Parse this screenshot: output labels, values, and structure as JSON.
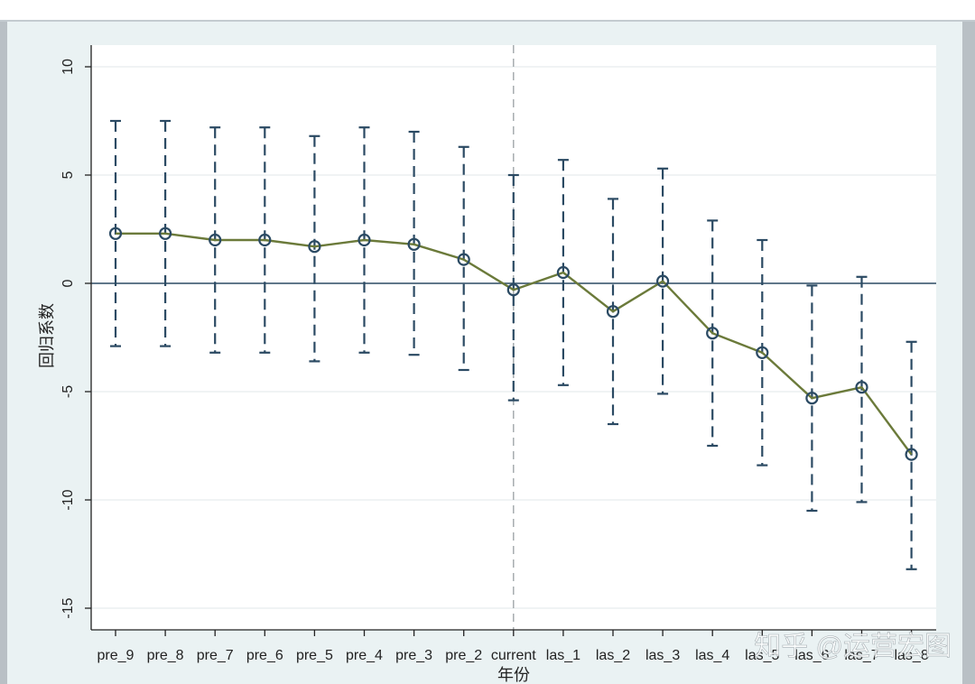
{
  "chart_data": {
    "type": "line",
    "xlabel": "年份",
    "ylabel": "回归系数",
    "categories": [
      "pre_9",
      "pre_8",
      "pre_7",
      "pre_6",
      "pre_5",
      "pre_4",
      "pre_3",
      "pre_2",
      "current",
      "las_1",
      "las_2",
      "las_3",
      "las_4",
      "las_5",
      "las_6",
      "las_7",
      "las_8"
    ],
    "ylim": [
      -16,
      11
    ],
    "yticks": [
      10,
      5,
      0,
      -5,
      -10,
      -15
    ],
    "ytick_labels": [
      "10",
      "5",
      "0",
      "-5",
      "-10",
      "-15"
    ],
    "grid": true,
    "reference_lines": {
      "y": 0,
      "x_category": "current"
    },
    "series": [
      {
        "values": [
          2.3,
          2.3,
          2.0,
          2.0,
          1.7,
          2.0,
          1.8,
          1.1,
          -0.3,
          0.5,
          -1.3,
          0.1,
          -2.3,
          -3.2,
          -5.3,
          -4.8,
          -7.9
        ],
        "ci_upper": [
          7.5,
          7.5,
          7.2,
          7.2,
          6.8,
          7.2,
          7.0,
          6.3,
          5.0,
          5.7,
          3.9,
          5.3,
          2.9,
          2.0,
          -0.1,
          0.3,
          -2.7
        ],
        "ci_lower": [
          -2.9,
          -2.9,
          -3.2,
          -3.2,
          -3.6,
          -3.2,
          -3.3,
          -4.0,
          -5.4,
          -4.7,
          -6.5,
          -5.1,
          -7.5,
          -8.4,
          -10.5,
          -10.1,
          -13.2
        ],
        "color": "#6b7a3a",
        "ci_color": "#2b4a63"
      }
    ]
  },
  "watermark": "知乎 @运营宏图",
  "colors": {
    "plot_background": "#ffffff",
    "graph_background": "#eaf2f3",
    "grid": "#e6ecee",
    "line": "#6b7a3a",
    "marker": "#2b4a63",
    "ci": "#2b4a63",
    "zero_line": "#2b4a63",
    "vline": "#9aa0a3"
  }
}
